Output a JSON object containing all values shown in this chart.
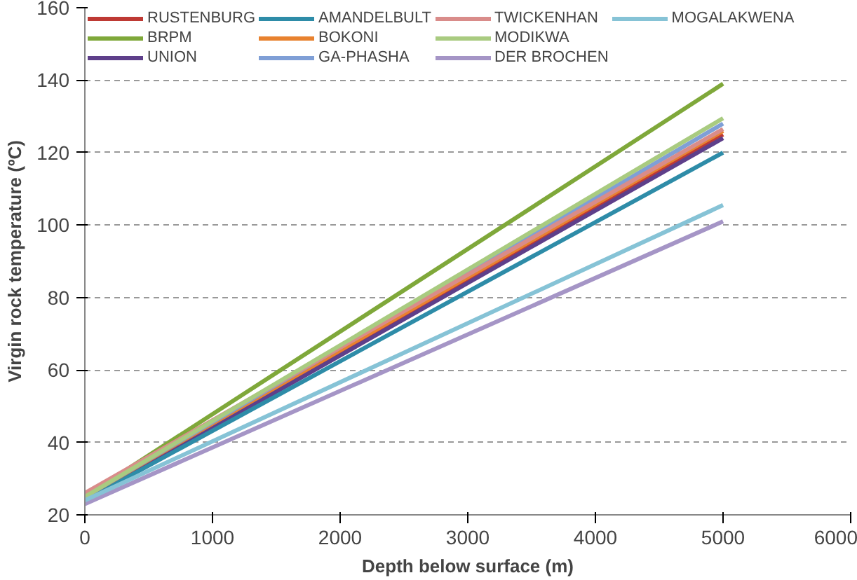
{
  "chart_data": {
    "type": "line",
    "xlabel": "Depth below surface (m)",
    "ylabel": "Virgin rock temperature (ºC)",
    "x": [
      0,
      5000
    ],
    "series": [
      {
        "name": "RUSTENBURG",
        "color": "#be3a34",
        "values": [
          25,
          125
        ]
      },
      {
        "name": "BRPM",
        "color": "#7fa83a",
        "values": [
          25,
          139
        ]
      },
      {
        "name": "UNION",
        "color": "#5e3f8a",
        "values": [
          24,
          124
        ]
      },
      {
        "name": "AMANDELBULT",
        "color": "#2e8ca8",
        "values": [
          24,
          120
        ]
      },
      {
        "name": "BOKONI",
        "color": "#e8822f",
        "values": [
          25,
          126
        ]
      },
      {
        "name": "GA-PHASHA",
        "color": "#7f9fd6",
        "values": [
          25,
          128
        ]
      },
      {
        "name": "TWICKENHAN",
        "color": "#d98c8a",
        "values": [
          26,
          126.5
        ]
      },
      {
        "name": "MODIKWA",
        "color": "#a9cb80",
        "values": [
          25,
          129.5
        ]
      },
      {
        "name": "DER BROCHEN",
        "color": "#a595c6",
        "values": [
          23,
          101
        ]
      },
      {
        "name": "MOGALAKWENA",
        "color": "#86c3d6",
        "values": [
          24,
          105.5
        ]
      }
    ],
    "xlim": [
      0,
      6000
    ],
    "xticks": [
      0,
      1000,
      2000,
      3000,
      4000,
      5000,
      6000
    ],
    "ylim": [
      20,
      160
    ],
    "yticks": [
      20,
      40,
      60,
      80,
      100,
      120,
      140,
      160
    ],
    "grid": "y",
    "legend": "top",
    "line_style": "solid",
    "marker": "none"
  }
}
